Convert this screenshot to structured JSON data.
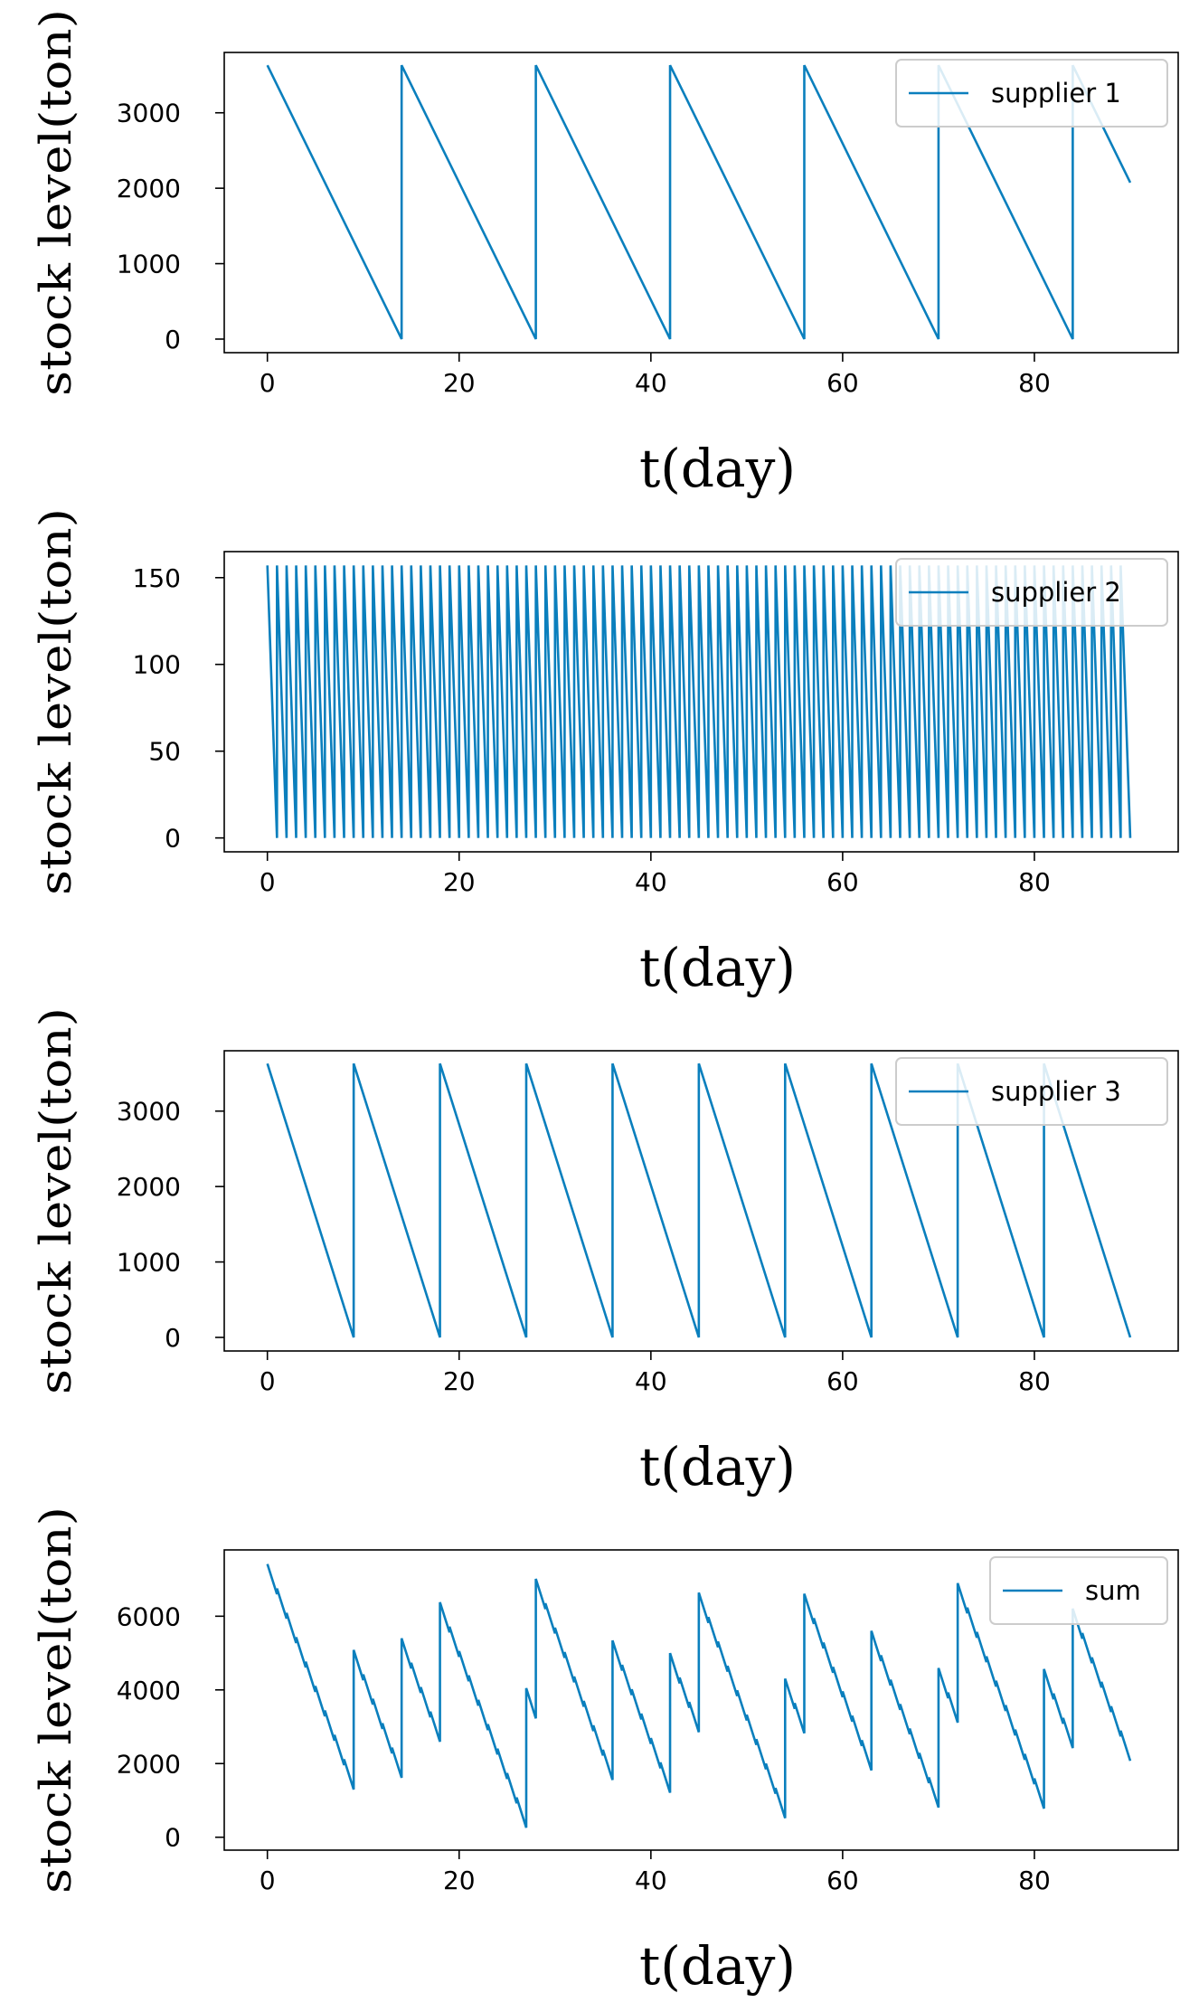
{
  "style": {
    "line_color": "#0a7fbd",
    "axis_color": "#000000",
    "legend_border": "#cccccc"
  },
  "chart_data": [
    {
      "type": "line",
      "title": "",
      "xlabel": "t(day)",
      "ylabel": "stock level(ton)",
      "xlim": [
        -4.5,
        95
      ],
      "ylim": [
        -180,
        3800
      ],
      "xticks": [
        0,
        20,
        40,
        60,
        80
      ],
      "yticks": [
        0,
        1000,
        2000,
        3000
      ],
      "grid": false,
      "legend": "top-right",
      "series": [
        {
          "name": "supplier 1",
          "pattern": {
            "kind": "sawtooth",
            "start": 0,
            "end": 90,
            "period": 14,
            "peak": 3630,
            "trough": 0
          }
        }
      ]
    },
    {
      "type": "line",
      "title": "",
      "xlabel": "t(day)",
      "ylabel": "stock level(ton)",
      "xlim": [
        -4.5,
        95
      ],
      "ylim": [
        -8,
        165
      ],
      "xticks": [
        0,
        20,
        40,
        60,
        80
      ],
      "yticks": [
        0,
        50,
        100,
        150
      ],
      "grid": false,
      "legend": "top-right",
      "series": [
        {
          "name": "supplier 2",
          "pattern": {
            "kind": "sawtooth",
            "start": 0,
            "end": 90,
            "period": 1,
            "peak": 157,
            "trough": 0
          }
        }
      ]
    },
    {
      "type": "line",
      "title": "",
      "xlabel": "t(day)",
      "ylabel": "stock level(ton)",
      "xlim": [
        -4.5,
        95
      ],
      "ylim": [
        -180,
        3800
      ],
      "xticks": [
        0,
        20,
        40,
        60,
        80
      ],
      "yticks": [
        0,
        1000,
        2000,
        3000
      ],
      "grid": false,
      "legend": "top-right",
      "series": [
        {
          "name": "supplier 3",
          "pattern": {
            "kind": "sawtooth",
            "start": 0,
            "end": 90,
            "period": 9,
            "peak": 3630,
            "trough": 0
          }
        }
      ]
    },
    {
      "type": "line",
      "title": "",
      "xlabel": "t(day)",
      "ylabel": "stock level(ton)",
      "xlim": [
        -4.5,
        95
      ],
      "ylim": [
        -350,
        7800
      ],
      "xticks": [
        0,
        20,
        40,
        60,
        80
      ],
      "yticks": [
        0,
        2000,
        4000,
        6000
      ],
      "grid": false,
      "legend": "top-right",
      "series": [
        {
          "name": "sum",
          "pattern": {
            "kind": "sum_of_panels",
            "panels": [
              0,
              1,
              2
            ]
          }
        }
      ]
    }
  ]
}
